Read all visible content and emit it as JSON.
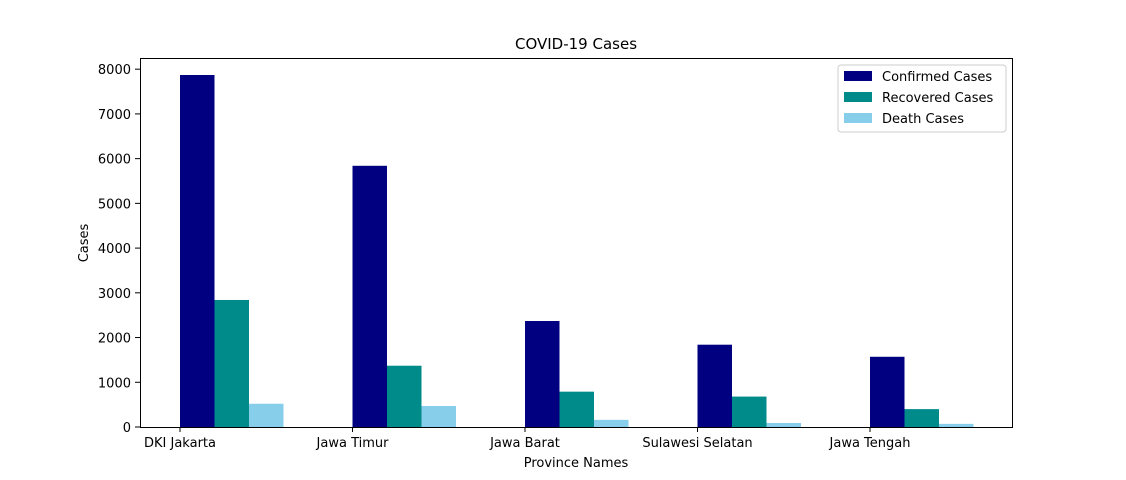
{
  "chart_data": {
    "type": "bar",
    "title": "COVID-19 Cases",
    "xlabel": "Province Names",
    "ylabel": "Cases",
    "categories": [
      "DKI Jakarta",
      "Jawa Timur",
      "Jawa Barat",
      "Sulawesi Selatan",
      "Jawa Tengah"
    ],
    "series": [
      {
        "name": "Confirmed Cases",
        "color": "#000080",
        "values": [
          7870,
          5840,
          2370,
          1840,
          1570
        ]
      },
      {
        "name": "Recovered Cases",
        "color": "#008b8b",
        "values": [
          2840,
          1370,
          790,
          680,
          400
        ]
      },
      {
        "name": "Death Cases",
        "color": "#87ceeb",
        "values": [
          520,
          470,
          160,
          90,
          70
        ]
      }
    ],
    "ylim": [
      0,
      8250
    ],
    "yticks": [
      0,
      1000,
      2000,
      3000,
      4000,
      5000,
      6000,
      7000,
      8000
    ],
    "grid": false,
    "legend_position": "top-right"
  }
}
